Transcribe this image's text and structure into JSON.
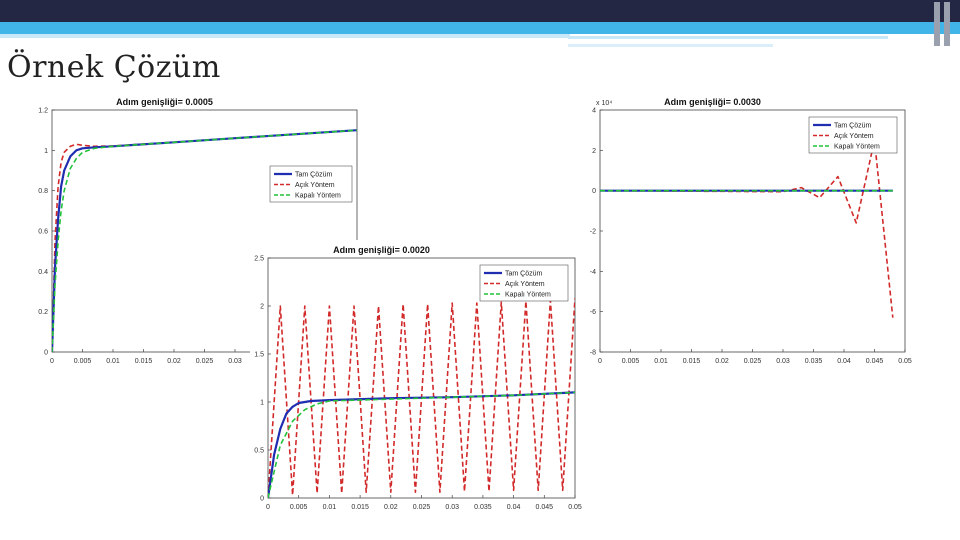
{
  "slide": {
    "title": "Örnek Çözüm"
  },
  "colors": {
    "exact": "#1f2db0",
    "explicit": "#d22a2a",
    "implicit": "#22c23a"
  },
  "chart_data": [
    {
      "type": "line",
      "title": "Adım genişliği= 0.0005",
      "xlim": [
        0,
        0.05
      ],
      "ylim": [
        0,
        1.2
      ],
      "xticks": [
        0,
        0.005,
        0.01,
        0.015,
        0.02,
        0.025,
        0.03
      ],
      "xtick_labels": [
        "0",
        "0.005",
        "0.01",
        "0.015",
        "0.02",
        "0.025",
        "0.03"
      ],
      "yticks": [
        0,
        0.2,
        0.4,
        0.6,
        0.8,
        1,
        1.2
      ],
      "ytick_labels": [
        "0",
        "0.2",
        "0.4",
        "0.6",
        "0.8",
        "1",
        "1.2"
      ],
      "legend_position": "right",
      "series": [
        {
          "name": "Tam Çözüm",
          "style": "solid",
          "x": [
            0,
            0.0005,
            0.001,
            0.0015,
            0.002,
            0.003,
            0.004,
            0.005,
            0.007,
            0.01,
            0.02,
            0.03,
            0.04,
            0.05
          ],
          "y": [
            0,
            0.42,
            0.66,
            0.82,
            0.9,
            0.97,
            1.0,
            1.01,
            1.015,
            1.02,
            1.04,
            1.06,
            1.08,
            1.1
          ]
        },
        {
          "name": "Açık Yöntem",
          "style": "dashed",
          "x": [
            0,
            0.0005,
            0.001,
            0.0015,
            0.002,
            0.003,
            0.004,
            0.005,
            0.007,
            0.01,
            0.02,
            0.03,
            0.04,
            0.05
          ],
          "y": [
            0,
            0.55,
            0.82,
            0.94,
            0.99,
            1.02,
            1.03,
            1.025,
            1.02,
            1.022,
            1.04,
            1.06,
            1.08,
            1.1
          ]
        },
        {
          "name": "Kapalı Yöntem",
          "style": "dashed",
          "x": [
            0,
            0.0005,
            0.001,
            0.0015,
            0.002,
            0.003,
            0.004,
            0.005,
            0.007,
            0.01,
            0.02,
            0.03,
            0.04,
            0.05
          ],
          "y": [
            0,
            0.33,
            0.55,
            0.7,
            0.8,
            0.91,
            0.96,
            0.99,
            1.01,
            1.02,
            1.04,
            1.06,
            1.08,
            1.1
          ]
        }
      ]
    },
    {
      "type": "line",
      "title": "Adım genişliği= 0.0030",
      "ylabel_multiplier": "x 10⁴",
      "xlim": [
        0,
        0.05
      ],
      "ylim": [
        -8,
        4
      ],
      "xticks": [
        0,
        0.005,
        0.01,
        0.015,
        0.02,
        0.025,
        0.03,
        0.035,
        0.04,
        0.045,
        0.05
      ],
      "xtick_labels": [
        "0",
        "0.005",
        "0.01",
        "0.015",
        "0.02",
        "0.025",
        "0.03",
        "0.035",
        "0.04",
        "0.045",
        "0.05"
      ],
      "yticks": [
        4,
        2,
        0,
        -2,
        -4,
        -6,
        -8
      ],
      "ytick_labels": [
        "4",
        "2",
        "0",
        "-2",
        "-4",
        "-6",
        "-8"
      ],
      "legend_position": "top-right",
      "series": [
        {
          "name": "Tam Çözüm",
          "style": "solid",
          "x": [
            0,
            0.048
          ],
          "y": [
            0,
            0
          ]
        },
        {
          "name": "Açık Yöntem",
          "style": "dashed",
          "x": [
            0,
            0.03,
            0.033,
            0.036,
            0.039,
            0.042,
            0.045,
            0.048
          ],
          "y": [
            0,
            -0.05,
            0.15,
            -0.35,
            0.7,
            -1.6,
            2.5,
            -6.3
          ]
        },
        {
          "name": "Kapalı Yöntem",
          "style": "dashed",
          "x": [
            0,
            0.048
          ],
          "y": [
            0,
            0
          ]
        }
      ]
    },
    {
      "type": "line",
      "title": "Adım genişliği= 0.0020",
      "xlim": [
        0,
        0.05
      ],
      "ylim": [
        0,
        2.5
      ],
      "xticks": [
        0,
        0.005,
        0.01,
        0.015,
        0.02,
        0.025,
        0.03,
        0.035,
        0.04,
        0.045,
        0.05
      ],
      "xtick_labels": [
        "0",
        "0.005",
        "0.01",
        "0.015",
        "0.02",
        "0.025",
        "0.03",
        "0.035",
        "0.04",
        "0.045",
        "0.05"
      ],
      "yticks": [
        0,
        0.5,
        1,
        1.5,
        2,
        2.5
      ],
      "ytick_labels": [
        "0",
        "0.5",
        "1",
        "1.5",
        "2",
        "2.5"
      ],
      "legend_position": "top-right",
      "series": [
        {
          "name": "Tam Çözüm",
          "style": "solid",
          "x": [
            0,
            0.001,
            0.002,
            0.003,
            0.004,
            0.005,
            0.007,
            0.01,
            0.02,
            0.03,
            0.04,
            0.05
          ],
          "y": [
            0,
            0.45,
            0.72,
            0.88,
            0.95,
            0.99,
            1.01,
            1.02,
            1.04,
            1.05,
            1.07,
            1.1
          ]
        },
        {
          "name": "Açık Yöntem",
          "style": "dashed",
          "x": [
            0,
            0.002,
            0.004,
            0.006,
            0.008,
            0.01,
            0.012,
            0.014,
            0.016,
            0.018,
            0.02,
            0.022,
            0.024,
            0.026,
            0.028,
            0.03,
            0.032,
            0.034,
            0.036,
            0.038,
            0.04,
            0.042,
            0.044,
            0.046,
            0.048,
            0.05
          ],
          "y": [
            0,
            2.0,
            0.03,
            2.0,
            0.05,
            2.0,
            0.05,
            2.0,
            0.06,
            2.0,
            0.06,
            2.02,
            0.06,
            2.02,
            0.06,
            2.03,
            0.07,
            2.03,
            0.07,
            2.04,
            0.08,
            2.05,
            0.08,
            2.06,
            0.08,
            2.08
          ]
        },
        {
          "name": "Kapalı Yöntem",
          "style": "dashed",
          "x": [
            0,
            0.002,
            0.004,
            0.006,
            0.008,
            0.01,
            0.02,
            0.03,
            0.04,
            0.05
          ],
          "y": [
            0,
            0.55,
            0.8,
            0.92,
            0.98,
            1.01,
            1.03,
            1.05,
            1.07,
            1.1
          ]
        }
      ]
    }
  ]
}
